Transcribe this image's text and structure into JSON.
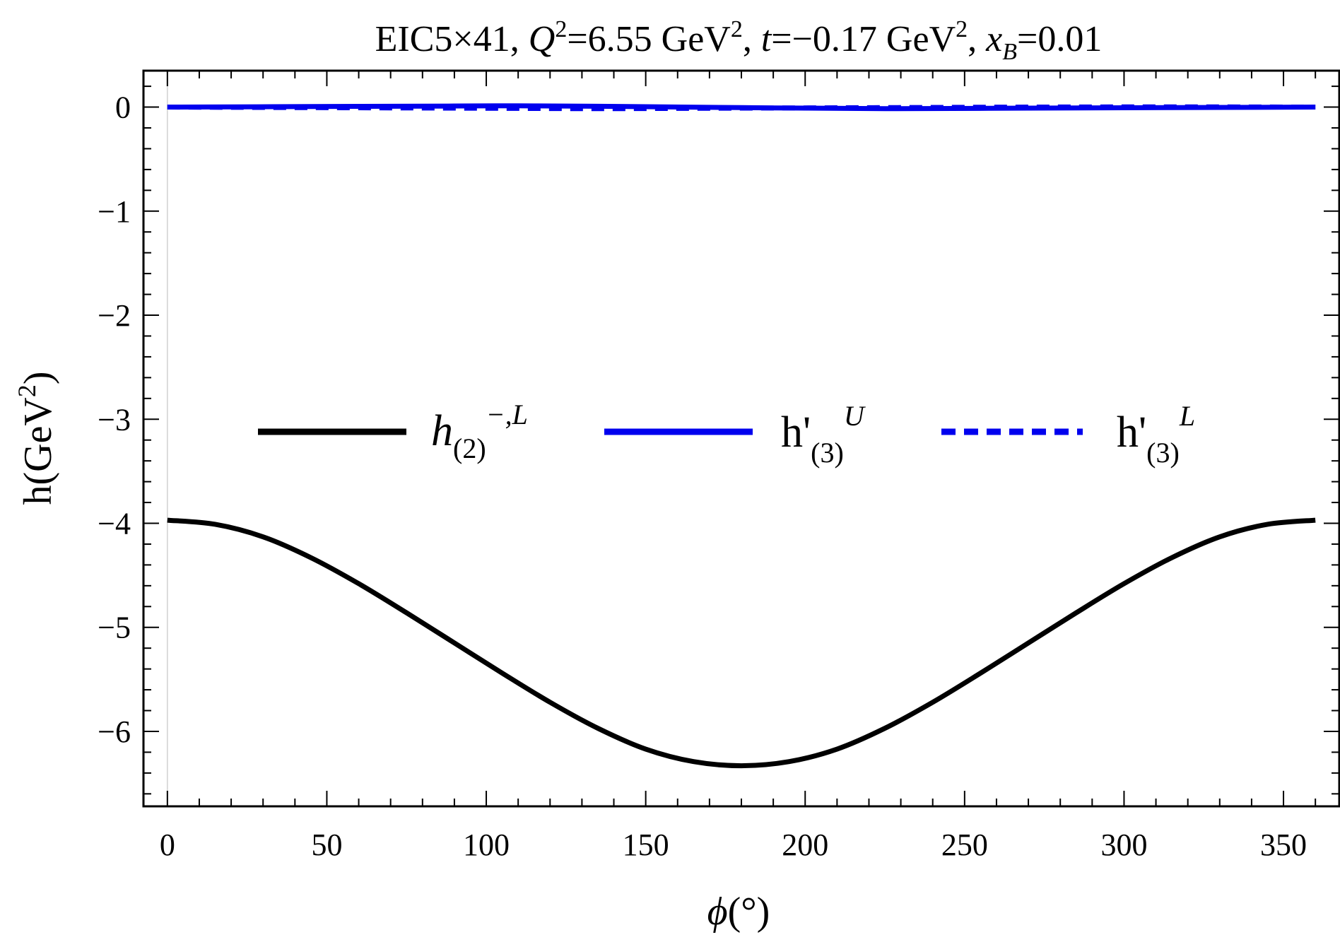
{
  "chart_data": {
    "type": "line",
    "title_parts": {
      "prefix": "EIC5×41, ",
      "q_sym": "Q",
      "q_sup": "2",
      "q_val": "=6.55 GeV",
      "q_unit_sup": "2",
      "t_sep": ", ",
      "t_sym": "t",
      "t_val": "=−0.17 GeV",
      "t_unit_sup": "2",
      "x_sep": ", ",
      "x_sym": "x",
      "x_sub": "B",
      "x_val": "=0.01"
    },
    "xlabel_parts": {
      "sym": "ϕ",
      "rest": "(°)"
    },
    "ylabel_parts": {
      "main": "h(GeV",
      "sup": "2",
      "close": ")"
    },
    "xlim": [
      -7.5,
      367.5
    ],
    "ylim": [
      -6.72,
      0.35
    ],
    "x_ticks": [
      0,
      50,
      100,
      150,
      200,
      250,
      300,
      350
    ],
    "y_ticks": [
      0,
      -1,
      -2,
      -3,
      -4,
      -5,
      -6
    ],
    "legend_position": "center",
    "series": [
      {
        "id": "h2",
        "legend": {
          "main": "h",
          "sub": "(2)",
          "sup": "−,L"
        },
        "color": "#000000",
        "style": "solid",
        "x": [
          0,
          15,
          30,
          45,
          60,
          75,
          90,
          105,
          120,
          135,
          150,
          165,
          180,
          195,
          210,
          225,
          240,
          255,
          270,
          285,
          300,
          315,
          330,
          345,
          360
        ],
        "y": [
          -3.97,
          -4.01,
          -4.13,
          -4.33,
          -4.58,
          -4.86,
          -5.15,
          -5.44,
          -5.72,
          -5.97,
          -6.17,
          -6.29,
          -6.33,
          -6.29,
          -6.17,
          -5.97,
          -5.72,
          -5.44,
          -5.15,
          -4.86,
          -4.58,
          -4.33,
          -4.13,
          -4.01,
          -3.97
        ]
      },
      {
        "id": "h3U",
        "legend": {
          "main": "h'",
          "sub": "(3)",
          "sup": "U"
        },
        "color": "#0000ee",
        "style": "solid",
        "x": [
          0,
          45,
          90,
          110,
          135,
          180,
          225,
          270,
          315,
          360
        ],
        "y": [
          0.0,
          0.005,
          0.01,
          0.012,
          0.008,
          -0.005,
          -0.015,
          -0.01,
          -0.005,
          0.0
        ]
      },
      {
        "id": "h3L",
        "legend": {
          "main": "h'",
          "sub": "(3)",
          "sup": "L"
        },
        "color": "#0000ee",
        "style": "dashed",
        "x": [
          0,
          45,
          90,
          135,
          180,
          225,
          270,
          315,
          360
        ],
        "y": [
          0.0,
          -0.005,
          -0.01,
          -0.015,
          -0.01,
          -0.005,
          0.0,
          0.002,
          0.0
        ]
      }
    ]
  }
}
